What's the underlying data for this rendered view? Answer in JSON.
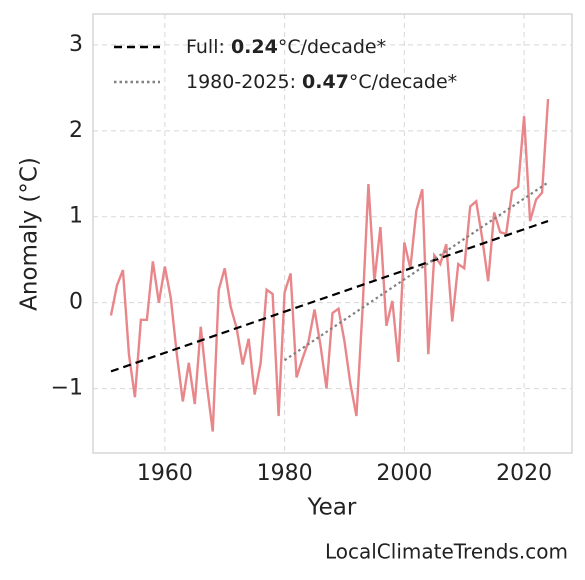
{
  "chart_data": {
    "type": "line",
    "xlabel": "Year",
    "ylabel": "Anomaly (°C)",
    "source": "LocalClimateTrends.com",
    "xlim": [
      1948,
      2028
    ],
    "ylim": [
      -1.75,
      3.36
    ],
    "xticks": [
      1960,
      1980,
      2000,
      2020
    ],
    "yticks": [
      {
        "value": -1,
        "label": "−1"
      },
      0,
      1,
      2,
      3
    ],
    "grid": true,
    "legend": "upper left",
    "series": [
      {
        "color": "#e8868a",
        "style": "solid",
        "x": [
          1951,
          1952,
          1953,
          1954,
          1955,
          1956,
          1957,
          1958,
          1959,
          1960,
          1961,
          1962,
          1963,
          1964,
          1965,
          1966,
          1967,
          1968,
          1969,
          1970,
          1971,
          1972,
          1973,
          1974,
          1975,
          1976,
          1977,
          1978,
          1979,
          1980,
          1981,
          1982,
          1983,
          1984,
          1985,
          1986,
          1987,
          1988,
          1989,
          1990,
          1991,
          1992,
          1993,
          1994,
          1995,
          1996,
          1997,
          1998,
          1999,
          2000,
          2001,
          2002,
          2003,
          2004,
          2005,
          2006,
          2007,
          2008,
          2009,
          2010,
          2011,
          2012,
          2013,
          2014,
          2015,
          2016,
          2017,
          2018,
          2019,
          2020,
          2021,
          2022,
          2023,
          2024
        ],
        "values": [
          -0.15,
          0.2,
          0.38,
          -0.6,
          -1.1,
          -0.2,
          -0.2,
          0.48,
          0.0,
          0.42,
          0.05,
          -0.6,
          -1.15,
          -0.7,
          -1.18,
          -0.28,
          -0.95,
          -1.5,
          0.15,
          0.4,
          -0.05,
          -0.3,
          -0.72,
          -0.42,
          -1.07,
          -0.7,
          0.15,
          0.1,
          -1.32,
          0.12,
          0.34,
          -0.87,
          -0.65,
          -0.45,
          -0.08,
          -0.5,
          -1.0,
          -0.12,
          -0.07,
          -0.45,
          -0.95,
          -1.32,
          -0.1,
          1.38,
          0.25,
          0.88,
          -0.27,
          0.02,
          -0.69,
          0.7,
          0.4,
          1.07,
          1.32,
          -0.6,
          0.55,
          0.45,
          0.68,
          -0.22,
          0.45,
          0.4,
          1.12,
          1.18,
          0.75,
          0.25,
          1.05,
          0.82,
          0.8,
          1.3,
          1.35,
          2.17,
          0.95,
          1.2,
          1.28,
          2.37
        ]
      },
      {
        "name": "Full: 0.24°C/decade*",
        "color": "#000000",
        "style": "dashed",
        "x": [
          1951,
          2024
        ],
        "values": [
          -0.8,
          0.95
        ]
      },
      {
        "name": "1980-2025: 0.47°C/decade*",
        "color": "#808080",
        "style": "dotted",
        "x": [
          1980,
          2024
        ],
        "values": [
          -0.67,
          1.4
        ]
      }
    ]
  }
}
